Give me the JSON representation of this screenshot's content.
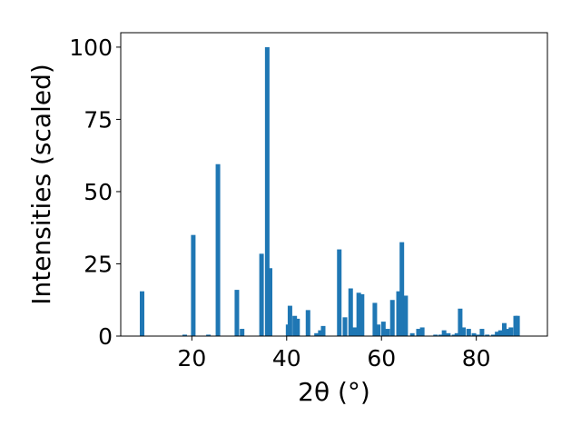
{
  "chart_data": {
    "type": "bar",
    "title": "",
    "xlabel": "2θ (°)",
    "ylabel": "Intensities (scaled)",
    "xlim": [
      5,
      95
    ],
    "ylim": [
      0,
      105
    ],
    "grid": false,
    "bar_color": "#1f77b4",
    "x_ticks": [
      20,
      40,
      60,
      80
    ],
    "y_ticks": [
      0,
      25,
      50,
      75,
      100
    ],
    "x": [
      9.5,
      18.5,
      20.3,
      23.5,
      25.5,
      29.5,
      30.6,
      34.7,
      35.9,
      36.5,
      40.3,
      40.7,
      41.7,
      42.3,
      44.5,
      46.3,
      47.1,
      47.7,
      51.1,
      52.3,
      53.5,
      54.4,
      55.2,
      55.9,
      58.6,
      59.3,
      60.4,
      61.3,
      62.3,
      63.6,
      64.3,
      65.1,
      66.5,
      67.8,
      68.6,
      71.4,
      72.5,
      73.2,
      74.1,
      75.3,
      75.9,
      76.6,
      77.3,
      78.4,
      79.5,
      80.4,
      81.2,
      82.3,
      83.6,
      84.4,
      85.1,
      85.9,
      86.6,
      87.3,
      88.3,
      88.7
    ],
    "values": [
      15.5,
      0.5,
      35,
      0.5,
      59.5,
      16,
      2.5,
      28.5,
      100,
      23.5,
      4,
      10.5,
      7,
      6,
      9,
      1,
      2,
      3.5,
      30,
      6.5,
      16.5,
      3,
      15,
      14.5,
      11.5,
      4,
      5,
      2.5,
      12.5,
      15.5,
      32.5,
      14,
      1,
      2.5,
      3,
      0.5,
      0.5,
      2,
      1,
      0.5,
      1,
      9.5,
      3,
      2.5,
      1,
      0.5,
      2.5,
      0.5,
      0.5,
      1.5,
      2,
      4.5,
      2.5,
      3,
      7,
      7
    ]
  }
}
